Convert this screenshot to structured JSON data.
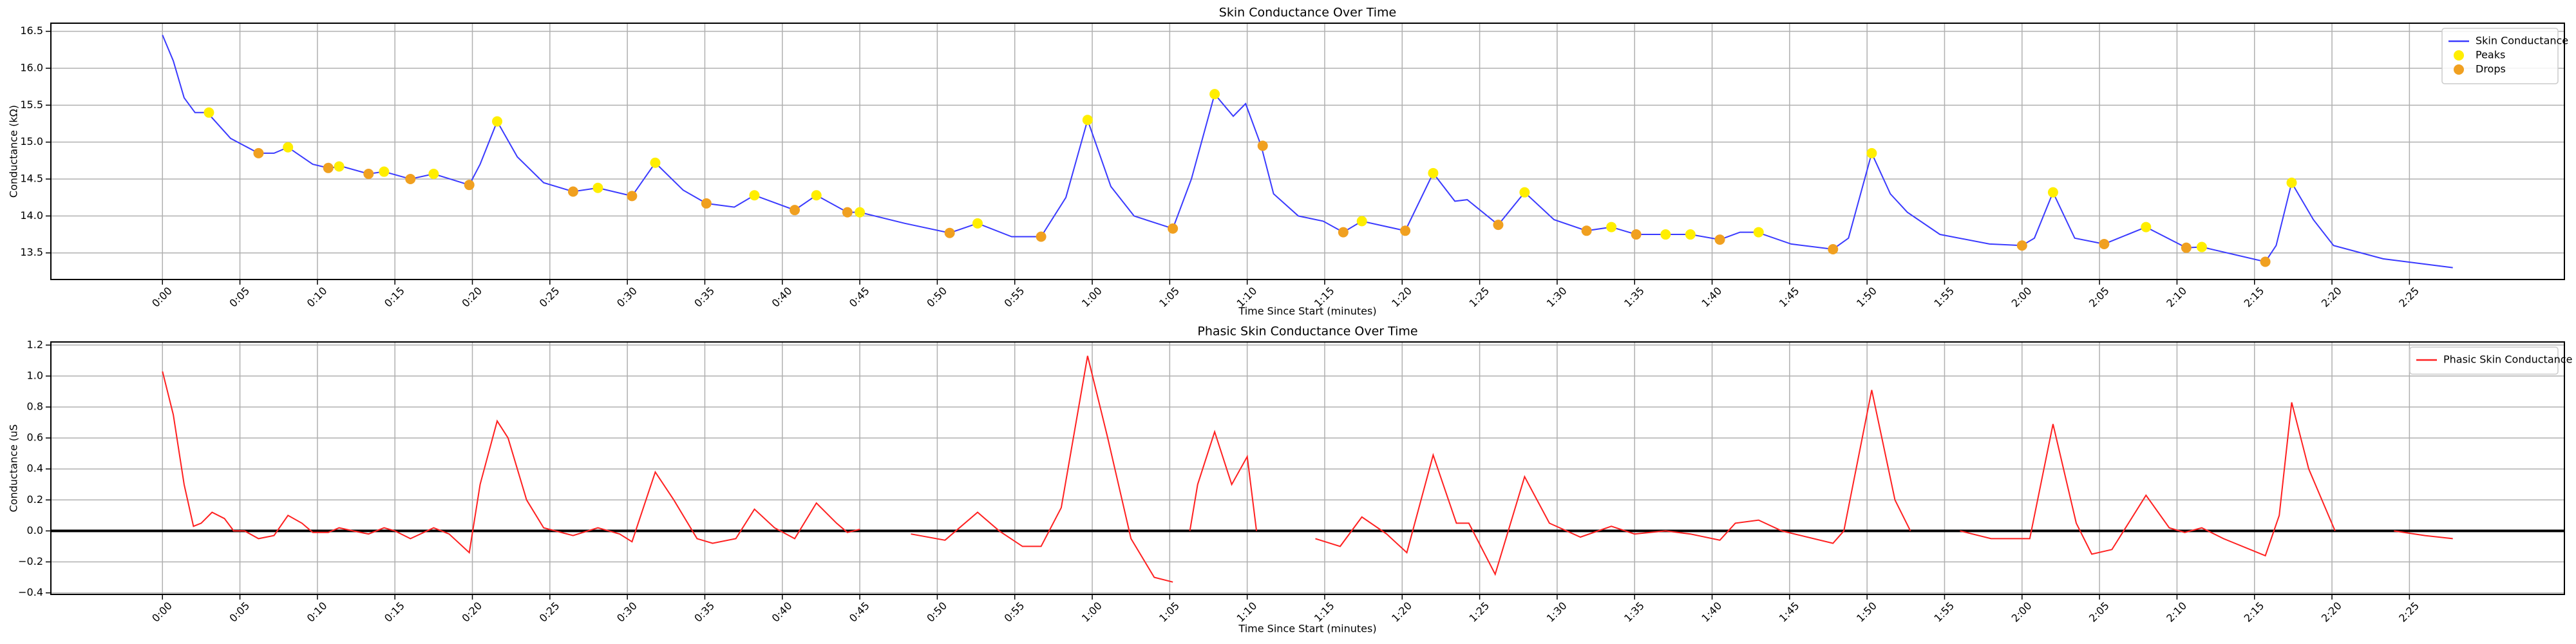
{
  "chart_data": [
    {
      "type": "line",
      "title": "Skin Conductance Over Time",
      "xlabel": "Time Since Start (minutes)",
      "ylabel": "Conductance (kΩ)",
      "xlim": [
        -7.2,
        155
      ],
      "ylim": [
        13.14,
        16.61
      ],
      "grid": true,
      "legend": "upper right",
      "xticks": [
        {
          "value": 0,
          "label": "0:00"
        },
        {
          "value": 5,
          "label": "0:05"
        },
        {
          "value": 10,
          "label": "0:10"
        },
        {
          "value": 15,
          "label": "0:15"
        },
        {
          "value": 20,
          "label": "0:20"
        },
        {
          "value": 25,
          "label": "0:25"
        },
        {
          "value": 30,
          "label": "0:30"
        },
        {
          "value": 35,
          "label": "0:35"
        },
        {
          "value": 40,
          "label": "0:40"
        },
        {
          "value": 45,
          "label": "0:45"
        },
        {
          "value": 50,
          "label": "0:50"
        },
        {
          "value": 55,
          "label": "0:55"
        },
        {
          "value": 60,
          "label": "1:00"
        },
        {
          "value": 65,
          "label": "1:05"
        },
        {
          "value": 70,
          "label": "1:10"
        },
        {
          "value": 75,
          "label": "1:15"
        },
        {
          "value": 80,
          "label": "1:20"
        },
        {
          "value": 85,
          "label": "1:25"
        },
        {
          "value": 90,
          "label": "1:30"
        },
        {
          "value": 95,
          "label": "1:35"
        },
        {
          "value": 100,
          "label": "1:40"
        },
        {
          "value": 105,
          "label": "1:45"
        },
        {
          "value": 110,
          "label": "1:50"
        },
        {
          "value": 115,
          "label": "1:55"
        },
        {
          "value": 120,
          "label": "2:00"
        },
        {
          "value": 125,
          "label": "2:05"
        },
        {
          "value": 130,
          "label": "2:10"
        },
        {
          "value": 135,
          "label": "2:15"
        },
        {
          "value": 140,
          "label": "2:20"
        },
        {
          "value": 145,
          "label": "2:25"
        }
      ],
      "yticks": [
        13.5,
        {
          "value": 14,
          "label": "14.0"
        },
        14.5,
        {
          "value": 15,
          "label": "15.0"
        },
        15.5,
        {
          "value": 16,
          "label": "16.0"
        },
        16.5
      ],
      "series": [
        {
          "name": "Skin Conductance",
          "type": "line",
          "color": "#3a3aff",
          "x": [
            0,
            0.7,
            1.4,
            2.1,
            2.9,
            4.4,
            6.2,
            7.2,
            8.1,
            9.7,
            10.7,
            11.6,
            13.3,
            14.3,
            16,
            17.5,
            19.8,
            20.5,
            21.6,
            22.9,
            24.6,
            26.5,
            28.1,
            30.3,
            31.8,
            33.6,
            35.1,
            36.9,
            38.2,
            40.8,
            42.2,
            44.2,
            45,
            47.9,
            50.8,
            52.6,
            54.8,
            56.7,
            58.3,
            59.7,
            61.2,
            62.7,
            65.2,
            66.4,
            67.9,
            69.1,
            69.9,
            70.9,
            71.7,
            73.3,
            74.9,
            76.2,
            77.4,
            80.2,
            82,
            83.4,
            84.2,
            86.2,
            87.9,
            89.8,
            91.9,
            93.5,
            95.1,
            98.6,
            100.5,
            101.8,
            102.9,
            105.1,
            107.8,
            108.8,
            110.3,
            111.5,
            112.6,
            114.7,
            117.9,
            120,
            120.8,
            122,
            123.4,
            125.3,
            128,
            130.6,
            131.6,
            135.7,
            136.4,
            137.4,
            138.8,
            140.1,
            143.3,
            147.8
          ],
          "values": [
            16.45,
            16.1,
            15.6,
            15.4,
            15.4,
            15.05,
            14.85,
            14.85,
            14.93,
            14.7,
            14.65,
            14.67,
            14.57,
            14.6,
            14.5,
            14.57,
            14.42,
            14.7,
            15.28,
            14.8,
            14.45,
            14.33,
            14.38,
            14.27,
            14.72,
            14.35,
            14.17,
            14.12,
            14.28,
            14.08,
            14.28,
            14.05,
            14.05,
            13.9,
            13.77,
            13.9,
            13.72,
            13.72,
            14.25,
            15.3,
            14.4,
            14,
            13.83,
            14.5,
            15.65,
            15.35,
            15.52,
            14.95,
            14.3,
            14,
            13.93,
            13.78,
            13.93,
            13.8,
            14.58,
            14.2,
            14.22,
            13.88,
            14.32,
            13.95,
            13.8,
            13.85,
            13.75,
            13.75,
            13.68,
            13.78,
            13.78,
            13.62,
            13.55,
            13.7,
            14.85,
            14.3,
            14.05,
            13.75,
            13.62,
            13.6,
            13.7,
            14.32,
            13.7,
            13.62,
            13.85,
            13.57,
            13.58,
            13.38,
            13.6,
            14.45,
            13.95,
            13.6,
            13.42,
            13.3
          ]
        },
        {
          "name": "Peaks",
          "type": "scatter",
          "color": "#ffee00",
          "x": [
            3,
            8.1,
            11.4,
            14.3,
            17.5,
            21.6,
            28.1,
            31.8,
            38.2,
            42.2,
            45,
            52.6,
            59.7,
            67.9,
            77.4,
            82,
            87.9,
            93.5,
            97,
            98.6,
            103,
            110.3,
            122,
            128,
            131.6,
            137.4
          ],
          "values": [
            15.4,
            14.93,
            14.67,
            14.6,
            14.57,
            15.28,
            14.38,
            14.72,
            14.28,
            14.28,
            14.05,
            13.9,
            15.3,
            15.65,
            13.93,
            14.58,
            14.32,
            13.85,
            13.75,
            13.75,
            13.78,
            14.85,
            14.32,
            13.85,
            13.58,
            14.45
          ]
        },
        {
          "name": "Drops",
          "type": "scatter",
          "color": "#f0a020",
          "x": [
            6.2,
            10.7,
            13.3,
            16,
            19.8,
            26.5,
            30.3,
            35.1,
            40.8,
            44.2,
            50.8,
            56.7,
            65.2,
            71,
            76.2,
            80.2,
            86.2,
            91.9,
            95.1,
            100.5,
            107.8,
            120,
            125.3,
            130.6,
            135.7
          ],
          "values": [
            14.85,
            14.65,
            14.57,
            14.5,
            14.42,
            14.33,
            14.27,
            14.17,
            14.08,
            14.05,
            13.77,
            13.72,
            13.83,
            14.95,
            13.78,
            13.8,
            13.88,
            13.8,
            13.75,
            13.68,
            13.55,
            13.6,
            13.62,
            13.57,
            13.38
          ]
        }
      ]
    },
    {
      "type": "line",
      "title": "Phasic Skin Conductance Over Time",
      "xlabel": "Time Since Start (minutes)",
      "ylabel": "Conductance (uS",
      "xlim": [
        -7.2,
        155
      ],
      "ylim": [
        -0.41,
        1.22
      ],
      "grid": true,
      "legend": "upper right",
      "baseline": 0,
      "xticks": [
        {
          "value": 0,
          "label": "0:00"
        },
        {
          "value": 5,
          "label": "0:05"
        },
        {
          "value": 10,
          "label": "0:10"
        },
        {
          "value": 15,
          "label": "0:15"
        },
        {
          "value": 20,
          "label": "0:20"
        },
        {
          "value": 25,
          "label": "0:25"
        },
        {
          "value": 30,
          "label": "0:30"
        },
        {
          "value": 35,
          "label": "0:35"
        },
        {
          "value": 40,
          "label": "0:40"
        },
        {
          "value": 45,
          "label": "0:45"
        },
        {
          "value": 50,
          "label": "0:50"
        },
        {
          "value": 55,
          "label": "0:55"
        },
        {
          "value": 60,
          "label": "1:00"
        },
        {
          "value": 65,
          "label": "1:05"
        },
        {
          "value": 70,
          "label": "1:10"
        },
        {
          "value": 75,
          "label": "1:15"
        },
        {
          "value": 80,
          "label": "1:20"
        },
        {
          "value": 85,
          "label": "1:25"
        },
        {
          "value": 90,
          "label": "1:30"
        },
        {
          "value": 95,
          "label": "1:35"
        },
        {
          "value": 100,
          "label": "1:40"
        },
        {
          "value": 105,
          "label": "1:45"
        },
        {
          "value": 110,
          "label": "1:50"
        },
        {
          "value": 115,
          "label": "1:55"
        },
        {
          "value": 120,
          "label": "2:00"
        },
        {
          "value": 125,
          "label": "2:05"
        },
        {
          "value": 130,
          "label": "2:10"
        },
        {
          "value": 135,
          "label": "2:15"
        },
        {
          "value": 140,
          "label": "2:20"
        },
        {
          "value": 145,
          "label": "2:25"
        }
      ],
      "yticks": [
        {
          "value": -0.4,
          "label": "−0.4"
        },
        {
          "value": -0.2,
          "label": "−0.2"
        },
        {
          "value": 0,
          "label": "0.0"
        },
        0.2,
        0.4,
        0.6,
        0.8,
        {
          "value": 1,
          "label": "1.0"
        },
        1.2
      ],
      "series": [
        {
          "name": "Phasic Skin Conductance",
          "type": "line",
          "color": "#ff2020",
          "x": [
            0,
            0.7,
            1.4,
            2,
            2.5,
            3.2,
            4,
            4.6,
            5.3,
            6.2,
            7.2,
            8.1,
            9,
            9.7,
            10.7,
            11.4,
            12.3,
            13.3,
            14.3,
            15,
            16,
            17.5,
            18.5,
            19.8,
            20.5,
            21.6,
            22.3,
            23.5,
            24.6,
            26.5,
            28.1,
            29.5,
            30.3,
            31.8,
            33,
            34.5,
            35.5,
            37,
            38.2,
            39.5,
            40.8,
            42.2,
            43.5,
            44.2,
            45,
            46,
            48.3,
            50.5,
            52.6,
            54,
            55.5,
            56.7,
            58,
            59.7,
            61,
            62.5,
            64,
            65.2,
            65.6,
            66.3,
            66.8,
            67.9,
            69,
            70,
            70.6,
            71.5,
            74.4,
            76,
            77.4,
            79,
            80.3,
            82,
            83.5,
            84.3,
            86,
            87.9,
            89.5,
            91.5,
            93.5,
            95,
            97,
            98.6,
            100.5,
            101.5,
            103,
            104.5,
            107.8,
            108.5,
            110.3,
            111.8,
            112.8,
            113.2,
            116,
            118,
            120.5,
            122,
            123.5,
            124.5,
            125.8,
            128,
            129.5,
            130.5,
            131.6,
            133,
            135.7,
            136.6,
            137.4,
            138.5,
            140.2,
            140.6,
            144,
            146,
            147.8
          ],
          "values": [
            1.03,
            0.75,
            0.3,
            0.03,
            0.05,
            0.12,
            0.08,
            0,
            0,
            -0.05,
            -0.03,
            0.1,
            0.05,
            -0.01,
            -0.01,
            0.02,
            0,
            -0.02,
            0.02,
            0,
            -0.05,
            0.02,
            -0.02,
            -0.14,
            0.3,
            0.71,
            0.6,
            0.2,
            0.02,
            -0.03,
            0.02,
            -0.02,
            -0.07,
            0.38,
            0.2,
            -0.05,
            -0.08,
            -0.05,
            0.14,
            0.02,
            -0.05,
            0.18,
            0.05,
            -0.01,
            0.01,
            null,
            -0.02,
            -0.06,
            0.12,
            0,
            -0.1,
            -0.1,
            0.15,
            1.13,
            0.6,
            -0.05,
            -0.3,
            -0.33,
            null,
            0,
            0.3,
            0.64,
            0.3,
            0.48,
            0,
            null,
            -0.05,
            -0.1,
            0.09,
            -0.02,
            -0.14,
            0.49,
            0.05,
            0.05,
            -0.28,
            0.35,
            0.05,
            -0.04,
            0.03,
            -0.02,
            0,
            -0.02,
            -0.06,
            0.05,
            0.07,
            0,
            -0.08,
            0,
            0.91,
            0.2,
            0,
            null,
            0,
            -0.05,
            -0.05,
            0.69,
            0.05,
            -0.15,
            -0.12,
            0.23,
            0.02,
            -0.01,
            0.02,
            -0.05,
            -0.16,
            0.1,
            0.83,
            0.4,
            0,
            null,
            0,
            -0.03,
            -0.05
          ]
        }
      ]
    }
  ]
}
